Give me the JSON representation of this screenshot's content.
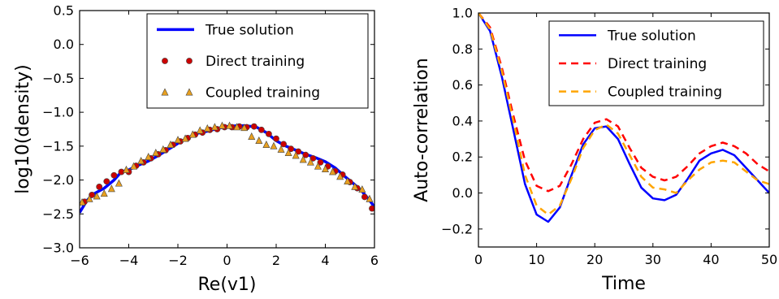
{
  "chart_data": [
    {
      "type": "line",
      "xlabel": "Re(v1)",
      "ylabel": "log10(density)",
      "xlim": [
        -6,
        6
      ],
      "ylim": [
        -3.0,
        0.5
      ],
      "xticks": [
        -6,
        -4,
        -2,
        0,
        2,
        4,
        6
      ],
      "yticks": [
        -3.0,
        -2.5,
        -2.0,
        -1.5,
        -1.0,
        -0.5,
        0.0,
        0.5
      ],
      "xtick_labels": [
        "−6",
        "−4",
        "−2",
        "0",
        "2",
        "4",
        "6"
      ],
      "ytick_labels": [
        "−3.0",
        "−2.5",
        "−2.0",
        "−1.5",
        "−1.0",
        "−0.5",
        "0.0",
        "0.5"
      ],
      "legend_position": "top-right",
      "grid": false,
      "series": [
        {
          "name": "True solution",
          "style": "line",
          "color": "#0000ff",
          "x": [
            -6.0,
            -5.7,
            -5.4,
            -5.0,
            -4.6,
            -4.3,
            -4.0,
            -3.6,
            -3.2,
            -2.8,
            -2.4,
            -2.0,
            -1.6,
            -1.2,
            -0.8,
            -0.4,
            0.0,
            0.4,
            0.8,
            1.2,
            1.6,
            2.0,
            2.4,
            2.8,
            3.2,
            3.6,
            4.0,
            4.4,
            4.8,
            5.2,
            5.5,
            5.8,
            6.0
          ],
          "y": [
            -2.48,
            -2.3,
            -2.2,
            -2.12,
            -2.0,
            -1.88,
            -1.85,
            -1.78,
            -1.72,
            -1.64,
            -1.55,
            -1.46,
            -1.38,
            -1.31,
            -1.28,
            -1.24,
            -1.21,
            -1.2,
            -1.2,
            -1.22,
            -1.3,
            -1.42,
            -1.5,
            -1.56,
            -1.62,
            -1.67,
            -1.73,
            -1.82,
            -1.95,
            -2.07,
            -2.17,
            -2.3,
            -2.4
          ]
        },
        {
          "name": "Direct training",
          "style": "marker-circle",
          "color": "#cc0000",
          "x": [
            -5.8,
            -5.5,
            -5.2,
            -4.9,
            -4.6,
            -4.3,
            -4.0,
            -3.7,
            -3.4,
            -3.1,
            -2.8,
            -2.5,
            -2.2,
            -1.9,
            -1.6,
            -1.3,
            -1.0,
            -0.7,
            -0.4,
            -0.1,
            0.2,
            0.5,
            0.8,
            1.1,
            1.4,
            1.7,
            2.0,
            2.3,
            2.6,
            2.9,
            3.2,
            3.5,
            3.8,
            4.1,
            4.4,
            4.7,
            5.0,
            5.3,
            5.6,
            5.9
          ],
          "y": [
            -2.32,
            -2.22,
            -2.1,
            -2.02,
            -1.93,
            -1.88,
            -1.88,
            -1.79,
            -1.74,
            -1.68,
            -1.62,
            -1.56,
            -1.48,
            -1.43,
            -1.38,
            -1.33,
            -1.3,
            -1.26,
            -1.25,
            -1.22,
            -1.22,
            -1.21,
            -1.22,
            -1.21,
            -1.26,
            -1.32,
            -1.39,
            -1.47,
            -1.54,
            -1.58,
            -1.63,
            -1.68,
            -1.74,
            -1.8,
            -1.87,
            -1.92,
            -2.03,
            -2.12,
            -2.25,
            -2.42
          ]
        },
        {
          "name": "Coupled training",
          "style": "marker-triangle",
          "color": "#e8a020",
          "x": [
            -5.9,
            -5.6,
            -5.3,
            -5.0,
            -4.7,
            -4.4,
            -4.1,
            -3.8,
            -3.5,
            -3.2,
            -2.9,
            -2.6,
            -2.3,
            -2.0,
            -1.7,
            -1.4,
            -1.1,
            -0.8,
            -0.5,
            -0.2,
            0.1,
            0.4,
            0.7,
            1.0,
            1.3,
            1.6,
            1.9,
            2.2,
            2.5,
            2.8,
            3.1,
            3.4,
            3.7,
            4.0,
            4.3,
            4.6,
            4.9,
            5.2,
            5.5,
            5.8
          ],
          "y": [
            -2.33,
            -2.28,
            -2.24,
            -2.2,
            -2.13,
            -2.05,
            -1.85,
            -1.8,
            -1.72,
            -1.66,
            -1.6,
            -1.55,
            -1.48,
            -1.41,
            -1.39,
            -1.33,
            -1.27,
            -1.24,
            -1.22,
            -1.2,
            -1.2,
            -1.22,
            -1.23,
            -1.36,
            -1.42,
            -1.48,
            -1.5,
            -1.55,
            -1.6,
            -1.64,
            -1.7,
            -1.74,
            -1.8,
            -1.84,
            -1.88,
            -1.95,
            -2.02,
            -2.1,
            -2.14,
            -2.28
          ]
        }
      ]
    },
    {
      "type": "line",
      "xlabel": "Time",
      "ylabel": "Auto-correlation",
      "xlim": [
        0,
        50
      ],
      "ylim": [
        -0.3,
        1.0
      ],
      "xticks": [
        0,
        10,
        20,
        30,
        40,
        50
      ],
      "yticks": [
        -0.2,
        0.0,
        0.2,
        0.4,
        0.6,
        0.8,
        1.0
      ],
      "xtick_labels": [
        "0",
        "10",
        "20",
        "30",
        "40",
        "50"
      ],
      "ytick_labels": [
        "−0.2",
        "0.0",
        "0.2",
        "0.4",
        "0.6",
        "0.8",
        "1.0"
      ],
      "legend_position": "top-right",
      "grid": false,
      "series": [
        {
          "name": "True solution",
          "style": "solid",
          "color": "#0000ff",
          "x": [
            0,
            2,
            4,
            6,
            8,
            10,
            12,
            14,
            16,
            18,
            20,
            22,
            24,
            26,
            28,
            30,
            32,
            34,
            36,
            38,
            40,
            42,
            44,
            46,
            48,
            50
          ],
          "y": [
            1.0,
            0.9,
            0.65,
            0.35,
            0.05,
            -0.12,
            -0.16,
            -0.08,
            0.1,
            0.27,
            0.36,
            0.37,
            0.3,
            0.16,
            0.03,
            -0.03,
            -0.04,
            -0.01,
            0.08,
            0.18,
            0.22,
            0.24,
            0.21,
            0.14,
            0.07,
            0.0
          ]
        },
        {
          "name": "Direct training",
          "style": "dashed",
          "color": "#ff0000",
          "x": [
            0,
            2,
            4,
            6,
            8,
            10,
            12,
            14,
            16,
            18,
            20,
            22,
            24,
            26,
            28,
            30,
            32,
            34,
            36,
            38,
            40,
            42,
            44,
            46,
            48,
            50
          ],
          "y": [
            1.0,
            0.92,
            0.7,
            0.43,
            0.18,
            0.04,
            0.01,
            0.04,
            0.16,
            0.3,
            0.39,
            0.41,
            0.37,
            0.25,
            0.14,
            0.09,
            0.07,
            0.09,
            0.15,
            0.22,
            0.26,
            0.28,
            0.26,
            0.22,
            0.16,
            0.12
          ]
        },
        {
          "name": "Coupled training",
          "style": "dashed",
          "color": "#ffa500",
          "x": [
            0,
            2,
            4,
            6,
            8,
            10,
            12,
            14,
            16,
            18,
            20,
            22,
            24,
            26,
            28,
            30,
            32,
            34,
            36,
            38,
            40,
            42,
            44,
            46,
            48,
            50
          ],
          "y": [
            1.0,
            0.91,
            0.68,
            0.4,
            0.1,
            -0.07,
            -0.12,
            -0.07,
            0.08,
            0.25,
            0.35,
            0.38,
            0.33,
            0.21,
            0.09,
            0.03,
            0.02,
            0.0,
            0.07,
            0.13,
            0.17,
            0.18,
            0.17,
            0.12,
            0.07,
            0.05
          ]
        }
      ]
    }
  ]
}
